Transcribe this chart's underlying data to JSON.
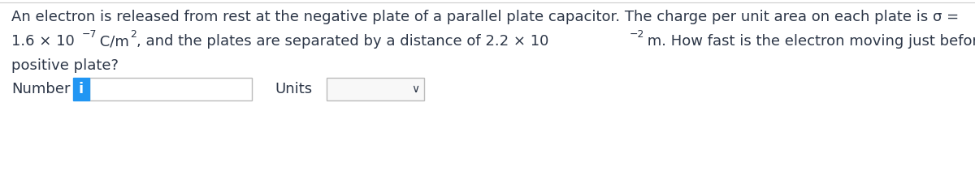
{
  "bg_color": "#ffffff",
  "top_line_color": "#cccccc",
  "text_color": "#2d3748",
  "line1": "An electron is released from rest at the negative plate of a parallel plate capacitor. The charge per unit area on each plate is σ =",
  "line3": "positive plate?",
  "number_label": "Number",
  "units_label": "Units",
  "info_btn_color": "#2196f3",
  "info_btn_text": "i",
  "info_btn_text_color": "#ffffff",
  "input_box_color": "#ffffff",
  "input_box_border": "#bbbbbb",
  "dropdown_bg": "#f8f8f8",
  "dropdown_border": "#bbbbbb",
  "font_size": 13.0,
  "sup_font_size": 9.0,
  "fig_width": 12.0,
  "fig_height": 2.16,
  "dpi": 100
}
